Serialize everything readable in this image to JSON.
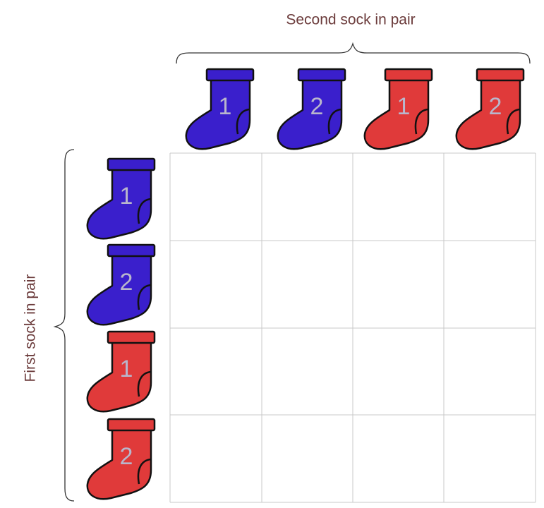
{
  "top_label": "Second sock in pair",
  "left_label": "First sock in pair",
  "columns": [
    {
      "label": "1",
      "color": "#3a1fcc"
    },
    {
      "label": "2",
      "color": "#3a1fcc"
    },
    {
      "label": "1",
      "color": "#e03a3a"
    },
    {
      "label": "2",
      "color": "#e03a3a"
    }
  ],
  "rows": [
    {
      "label": "1",
      "color": "#3a1fcc"
    },
    {
      "label": "2",
      "color": "#3a1fcc"
    },
    {
      "label": "1",
      "color": "#e03a3a"
    },
    {
      "label": "2",
      "color": "#e03a3a"
    }
  ]
}
